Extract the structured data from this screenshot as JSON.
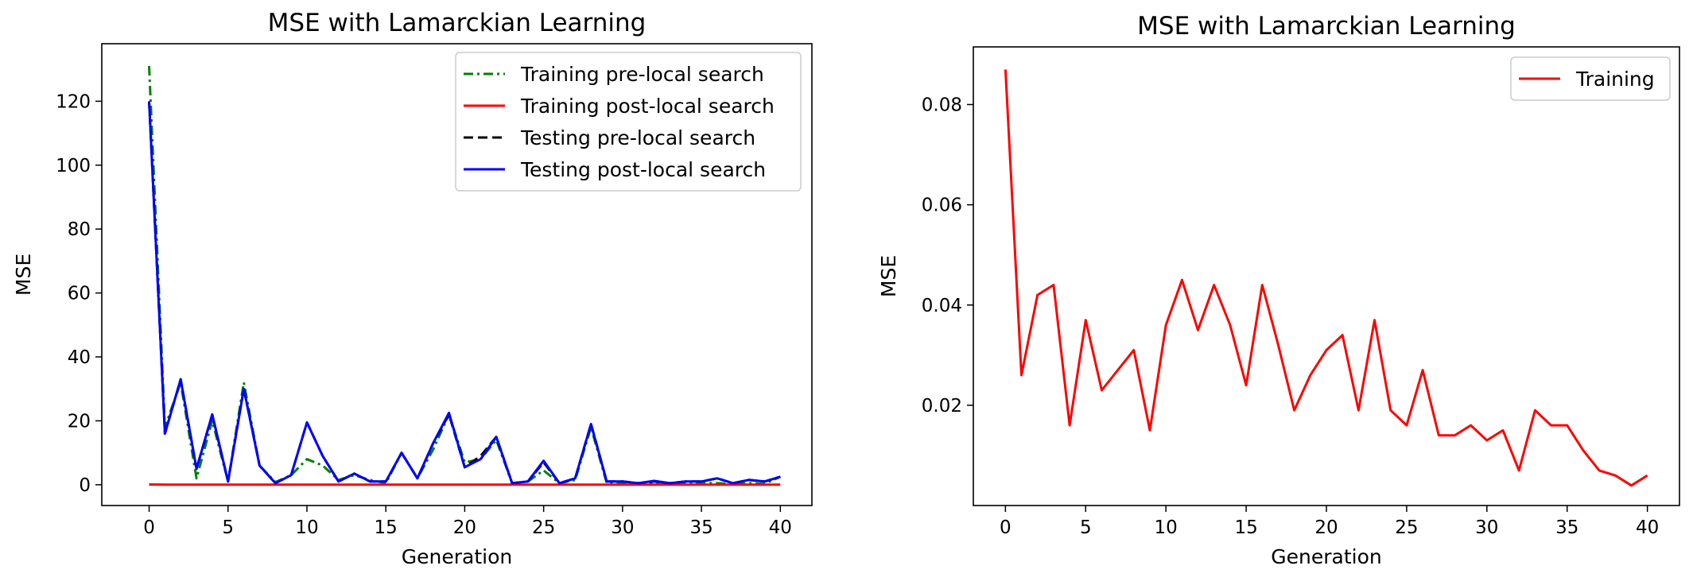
{
  "chart_data": [
    {
      "type": "line",
      "title": "MSE with Lamarckian Learning",
      "xlabel": "Generation",
      "ylabel": "MSE",
      "xlim": [
        -3,
        42
      ],
      "ylim": [
        -6.5,
        138
      ],
      "xticks": [
        0,
        5,
        10,
        15,
        20,
        25,
        30,
        35,
        40
      ],
      "yticks": [
        0,
        20,
        40,
        60,
        80,
        100,
        120
      ],
      "grid": false,
      "legend_position": "upper-right",
      "x": [
        0,
        1,
        2,
        3,
        4,
        5,
        6,
        7,
        8,
        9,
        10,
        11,
        12,
        13,
        14,
        15,
        16,
        17,
        18,
        19,
        20,
        21,
        22,
        23,
        24,
        25,
        26,
        27,
        28,
        29,
        30,
        31,
        32,
        33,
        34,
        35,
        36,
        37,
        38,
        39,
        40
      ],
      "series": [
        {
          "name": "Training pre-local search",
          "color": "#008000",
          "dash": "dashdot",
          "values": [
            131,
            18,
            32,
            2,
            20,
            1,
            32,
            6,
            0.8,
            3,
            8,
            6,
            1.5,
            3,
            1.5,
            0.5,
            10,
            2,
            11,
            22,
            7,
            8,
            14,
            0.5,
            1,
            4.5,
            0.5,
            1.5,
            18,
            0.5,
            0.5,
            0.3,
            0.5,
            0.3,
            0.5,
            0.5,
            0.5,
            0.3,
            0.5,
            0.3,
            2.5
          ]
        },
        {
          "name": "Training post-local search",
          "color": "#ff0000",
          "dash": "solid",
          "values": [
            0.087,
            0.026,
            0.042,
            0.044,
            0.016,
            0.037,
            0.023,
            0.027,
            0.031,
            0.015,
            0.036,
            0.045,
            0.035,
            0.044,
            0.036,
            0.024,
            0.044,
            0.032,
            0.019,
            0.026,
            0.031,
            0.034,
            0.019,
            0.037,
            0.019,
            0.016,
            0.027,
            0.014,
            0.014,
            0.016,
            0.013,
            0.015,
            0.007,
            0.019,
            0.016,
            0.016,
            0.011,
            0.007,
            0.006,
            0.004,
            0.006
          ]
        },
        {
          "name": "Testing pre-local search",
          "color": "#000000",
          "dash": "dashed",
          "values": [
            120,
            16,
            33,
            5,
            22,
            1,
            30,
            6,
            0.5,
            3,
            19.5,
            9,
            1,
            3.5,
            1,
            1,
            10,
            2,
            13,
            22,
            5.5,
            9,
            15,
            0.5,
            1,
            7,
            0.5,
            2,
            19,
            1,
            1,
            0.5,
            1,
            0.5,
            1,
            1,
            2,
            0.5,
            1.5,
            1,
            2.5
          ]
        },
        {
          "name": "Testing post-local search",
          "color": "#0000ff",
          "dash": "solid",
          "values": [
            120,
            16,
            33,
            5,
            22,
            1,
            30,
            6,
            0.5,
            3,
            19.5,
            9,
            1,
            3.5,
            1,
            1,
            10,
            2,
            13,
            22.5,
            5.5,
            8,
            15,
            0.5,
            1,
            7.5,
            0.5,
            2,
            19,
            1,
            1,
            0.5,
            1.2,
            0.5,
            1,
            1,
            2,
            0.5,
            1.5,
            1,
            2.5
          ]
        }
      ]
    },
    {
      "type": "line",
      "title": "MSE with Lamarckian Learning",
      "xlabel": "Generation",
      "ylabel": "MSE",
      "xlim": [
        -2,
        42
      ],
      "ylim": [
        -0.0,
        0.0915
      ],
      "xticks": [
        0,
        5,
        10,
        15,
        20,
        25,
        30,
        35,
        40
      ],
      "yticks": [
        0.02,
        0.04,
        0.06,
        0.08
      ],
      "yticklabels": [
        "0.02",
        "0.04",
        "0.06",
        "0.08"
      ],
      "grid": false,
      "legend_position": "upper-right",
      "x": [
        0,
        1,
        2,
        3,
        4,
        5,
        6,
        7,
        8,
        9,
        10,
        11,
        12,
        13,
        14,
        15,
        16,
        17,
        18,
        19,
        20,
        21,
        22,
        23,
        24,
        25,
        26,
        27,
        28,
        29,
        30,
        31,
        32,
        33,
        34,
        35,
        36,
        37,
        38,
        39,
        40
      ],
      "series": [
        {
          "name": "Training",
          "color": "#ff0000",
          "dash": "solid",
          "values": [
            0.087,
            0.026,
            0.042,
            0.044,
            0.016,
            0.037,
            0.023,
            0.027,
            0.031,
            0.015,
            0.036,
            0.045,
            0.035,
            0.044,
            0.036,
            0.024,
            0.044,
            0.032,
            0.019,
            0.026,
            0.031,
            0.034,
            0.019,
            0.037,
            0.019,
            0.016,
            0.027,
            0.014,
            0.014,
            0.016,
            0.013,
            0.015,
            0.007,
            0.019,
            0.016,
            0.016,
            0.011,
            0.007,
            0.006,
            0.004,
            0.006
          ]
        }
      ]
    }
  ]
}
